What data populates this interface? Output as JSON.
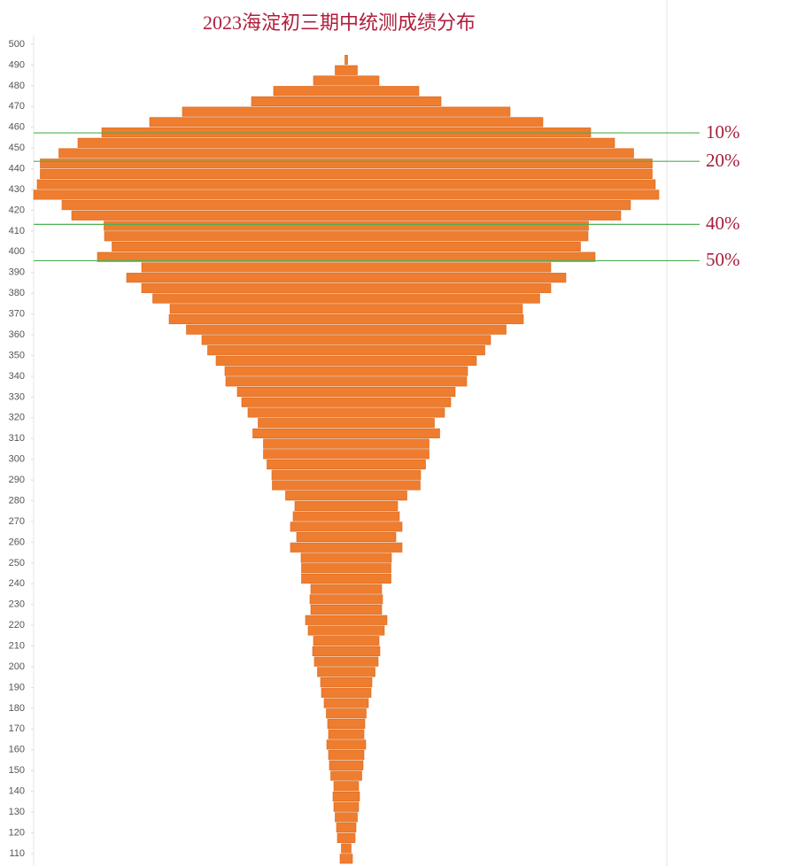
{
  "chart_data": {
    "type": "histogram",
    "orientation": "horizontal",
    "title": "2023海淀初三期中统测成绩分布",
    "color": "#ee7d2f",
    "bins": [
      105,
      110,
      115,
      120,
      125,
      130,
      135,
      140,
      145,
      150,
      155,
      160,
      165,
      170,
      175,
      180,
      185,
      190,
      195,
      200,
      205,
      210,
      215,
      220,
      225,
      230,
      235,
      240,
      245,
      250,
      255,
      260,
      265,
      270,
      275,
      280,
      285,
      290,
      295,
      300,
      305,
      310,
      315,
      320,
      325,
      330,
      335,
      340,
      345,
      350,
      355,
      360,
      365,
      370,
      375,
      380,
      385,
      390,
      395,
      400,
      405,
      410,
      415,
      420,
      425,
      430,
      435,
      440,
      445,
      450,
      455,
      460,
      465,
      470,
      475,
      480,
      485,
      490,
      495
    ],
    "counts": [
      14,
      11,
      20,
      22,
      25,
      28,
      30,
      28,
      35,
      38,
      40,
      44,
      40,
      42,
      45,
      50,
      56,
      58,
      65,
      72,
      76,
      74,
      86,
      92,
      80,
      82,
      80,
      101,
      101,
      102,
      126,
      112,
      126,
      120,
      116,
      137,
      167,
      168,
      179,
      187,
      187,
      211,
      199,
      222,
      236,
      246,
      272,
      274,
      294,
      313,
      326,
      361,
      400,
      398,
      437,
      462,
      496,
      462,
      562,
      529,
      546,
      547,
      620,
      642,
      706,
      698,
      691,
      691,
      649,
      606,
      552,
      444,
      370,
      214,
      164,
      74,
      25,
      3
    ],
    "ylim": [
      104,
      500
    ],
    "yticks": [
      110,
      120,
      130,
      140,
      150,
      160,
      170,
      180,
      190,
      200,
      210,
      220,
      230,
      240,
      250,
      260,
      270,
      280,
      290,
      300,
      310,
      320,
      330,
      340,
      350,
      360,
      370,
      380,
      390,
      400,
      410,
      420,
      430,
      440,
      450,
      460,
      470,
      480,
      490,
      500
    ],
    "reference_lines": [
      {
        "value": 457.3,
        "label": "10%",
        "color": "#4caf50"
      },
      {
        "value": 443.6,
        "label": "20%",
        "color": "#4caf50"
      },
      {
        "value": 413.2,
        "label": "40%",
        "color": "#4caf50"
      },
      {
        "value": 395.7,
        "label": "50%",
        "color": "#4caf50"
      }
    ]
  }
}
